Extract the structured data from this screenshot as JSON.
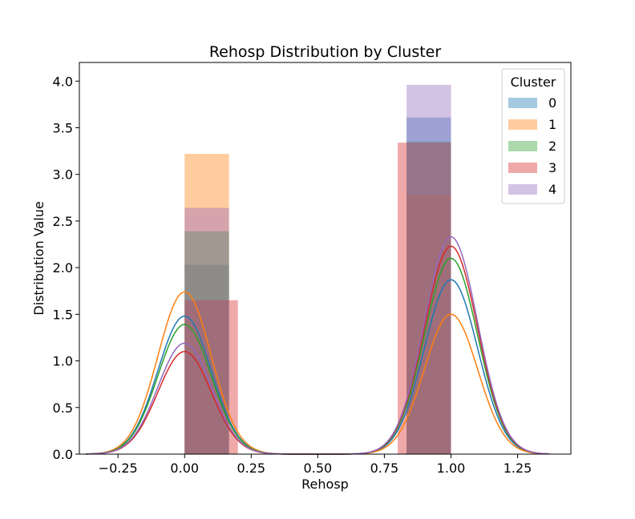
{
  "chart_data": {
    "type": "bar",
    "title": "Rehosp Distribution by Cluster",
    "xlabel": "Rehosp",
    "ylabel": "Distribution Value",
    "xlim": [
      -0.395,
      1.45
    ],
    "ylim": [
      0,
      4.2
    ],
    "x_ticks": [
      -0.25,
      0.0,
      0.25,
      0.5,
      0.75,
      1.0,
      1.25
    ],
    "x_tick_labels": [
      "−0.25",
      "0.00",
      "0.25",
      "0.50",
      "0.75",
      "1.00",
      "1.25"
    ],
    "y_ticks": [
      0.0,
      0.5,
      1.0,
      1.5,
      2.0,
      2.5,
      3.0,
      3.5,
      4.0
    ],
    "y_tick_labels": [
      "0.0",
      "0.5",
      "1.0",
      "1.5",
      "2.0",
      "2.5",
      "3.0",
      "3.5",
      "4.0"
    ],
    "grid": false,
    "legend": {
      "title": "Cluster",
      "placement": "top-right"
    },
    "series": [
      {
        "name": "0",
        "color": "#1f77b4",
        "bars": [
          {
            "x0": 0.0,
            "x1": 0.1667,
            "height": 2.03
          },
          {
            "x0": 0.8333,
            "x1": 1.0,
            "height": 3.61
          }
        ],
        "kde": {
          "peak_low": 1.48,
          "peak_high": 1.87,
          "x_range": [
            -0.37,
            1.37
          ]
        }
      },
      {
        "name": "1",
        "color": "#ff7f0e",
        "bars": [
          {
            "x0": 0.0,
            "x1": 0.1667,
            "height": 3.22
          },
          {
            "x0": 0.8333,
            "x1": 1.0,
            "height": 2.78
          }
        ],
        "kde": {
          "peak_low": 1.74,
          "peak_high": 1.5,
          "x_range": [
            -0.37,
            1.37
          ]
        }
      },
      {
        "name": "2",
        "color": "#2ca02c",
        "bars": [
          {
            "x0": 0.0,
            "x1": 0.1667,
            "height": 2.39
          },
          {
            "x0": 0.8333,
            "x1": 1.0,
            "height": 3.35
          }
        ],
        "kde": {
          "peak_low": 1.39,
          "peak_high": 2.1,
          "x_range": [
            -0.37,
            1.37
          ]
        }
      },
      {
        "name": "3",
        "color": "#d62728",
        "bars": [
          {
            "x0": 0.0,
            "x1": 0.2,
            "height": 1.65
          },
          {
            "x0": 0.8,
            "x1": 1.0,
            "height": 3.34
          }
        ],
        "kde": {
          "peak_low": 1.1,
          "peak_high": 2.23,
          "x_range": [
            -0.37,
            1.37
          ]
        }
      },
      {
        "name": "4",
        "color": "#9467bd",
        "bars": [
          {
            "x0": 0.0,
            "x1": 0.1667,
            "height": 2.64
          },
          {
            "x0": 0.8333,
            "x1": 1.0,
            "height": 3.96
          }
        ],
        "kde": {
          "peak_low": 1.19,
          "peak_high": 2.33,
          "x_range": [
            -0.37,
            1.37
          ]
        }
      }
    ]
  }
}
